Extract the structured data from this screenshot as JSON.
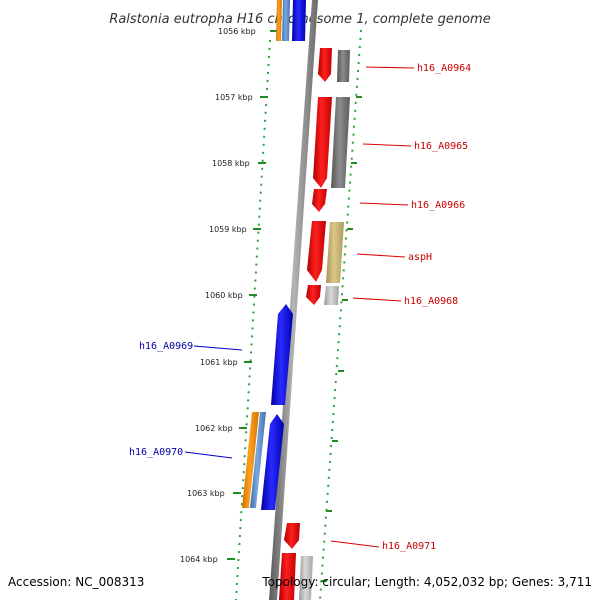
{
  "title": "Ralstonia eutropha H16 chromosome 1, complete genome",
  "footer": {
    "accession": "Accession: NC_008313",
    "stats": "Topology: circular; Length: 4,052,032 bp; Genes: 3,711"
  },
  "scale": {
    "unit_labels": [
      "1056 kbp",
      "1057 kbp",
      "1058 kbp",
      "1059 kbp",
      "1060 kbp",
      "1061 kbp",
      "1062 kbp",
      "1063 kbp",
      "1064 kbp"
    ]
  },
  "colors": {
    "forward_strand": "#ee0000",
    "reverse_strand": "#0000ee",
    "forward_label": "#cc0000",
    "reverse_label": "#0000aa",
    "tick": "#228b22",
    "backbone": "#888888",
    "cog_gray": "#6e6e6e",
    "cog_tan": "#c8b46e",
    "cog_light": "#bbbbbb",
    "cog_orange": "#f08c00",
    "cog_steel": "#5a8cc8"
  },
  "genes": [
    {
      "name": "h16_A0964",
      "strand": "forward"
    },
    {
      "name": "h16_A0965",
      "strand": "forward"
    },
    {
      "name": "h16_A0966",
      "strand": "forward"
    },
    {
      "name": "aspH",
      "strand": "forward"
    },
    {
      "name": "h16_A0968",
      "strand": "forward"
    },
    {
      "name": "h16_A0969",
      "strand": "reverse"
    },
    {
      "name": "h16_A0970",
      "strand": "reverse"
    },
    {
      "name": "h16_A0971",
      "strand": "forward"
    }
  ]
}
